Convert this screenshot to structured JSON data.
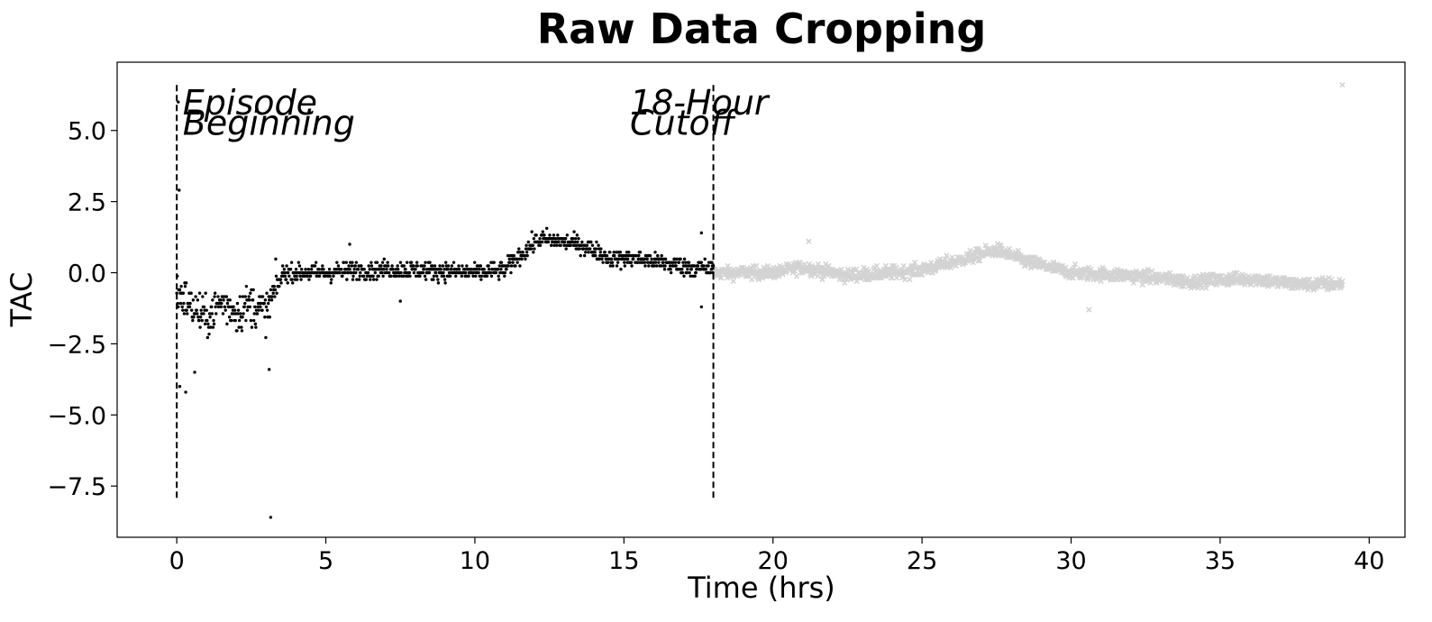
{
  "chart_data": {
    "type": "scatter",
    "title": "Raw Data Cropping",
    "xlabel": "Time (hrs)",
    "ylabel": "TAC",
    "xlim": [
      -2,
      41.2
    ],
    "ylim": [
      -9.3,
      7.4
    ],
    "xticks": [
      0,
      5,
      10,
      15,
      20,
      25,
      30,
      35,
      40
    ],
    "yticks": [
      5.0,
      2.5,
      0.0,
      -2.5,
      -5.0,
      -7.5
    ],
    "ytick_labels": [
      "5.0",
      "2.5",
      "0.0",
      "−2.5",
      "−5.0",
      "−7.5"
    ],
    "grid": false,
    "vlines": [
      {
        "x": 0,
        "ymin": -8.0,
        "ymax": 6.6,
        "style": "dashed",
        "label_lines": [
          "Episode",
          "Beginning"
        ],
        "label_x": 0.2
      },
      {
        "x": 18,
        "ymin": -8.0,
        "ymax": 6.6,
        "style": "dashed",
        "label_lines": [
          "18-Hour",
          "Cutoff"
        ],
        "label_x": 15.2
      }
    ],
    "label_y": [
      6.0,
      5.3
    ],
    "kept_color": "#000000",
    "cropped_color": "#d3d3d3",
    "kept_trend": [
      [
        0.0,
        -0.6
      ],
      [
        0.5,
        -1.2
      ],
      [
        1.0,
        -1.6
      ],
      [
        1.5,
        -1.0
      ],
      [
        2.0,
        -1.4
      ],
      [
        2.5,
        -1.1
      ],
      [
        3.0,
        -1.4
      ],
      [
        3.3,
        -0.6
      ],
      [
        3.6,
        0.0
      ],
      [
        5,
        0.0
      ],
      [
        6,
        0.1
      ],
      [
        8,
        0.1
      ],
      [
        10,
        0.0
      ],
      [
        11.0,
        0.1
      ],
      [
        11.6,
        0.7
      ],
      [
        12.2,
        1.2
      ],
      [
        13.0,
        1.1
      ],
      [
        13.8,
        0.9
      ],
      [
        14.5,
        0.5
      ],
      [
        15.5,
        0.5
      ],
      [
        16.5,
        0.3
      ],
      [
        18.0,
        0.1
      ]
    ],
    "cropped_trend": [
      [
        18.0,
        0.0
      ],
      [
        20,
        0.0
      ],
      [
        21,
        0.2
      ],
      [
        22.5,
        -0.1
      ],
      [
        24,
        0.0
      ],
      [
        25,
        0.1
      ],
      [
        26.5,
        0.5
      ],
      [
        27.5,
        0.8
      ],
      [
        28.5,
        0.4
      ],
      [
        30,
        0.0
      ],
      [
        32,
        -0.1
      ],
      [
        34,
        -0.3
      ],
      [
        36,
        -0.2
      ],
      [
        37.5,
        -0.4
      ],
      [
        39.1,
        -0.4
      ]
    ],
    "kept_outliers": [
      [
        0.05,
        6.0
      ],
      [
        0.08,
        2.9
      ],
      [
        0.1,
        -4.0
      ],
      [
        0.3,
        -4.2
      ],
      [
        0.6,
        -3.5
      ],
      [
        3.1,
        -3.4
      ],
      [
        3.15,
        -8.6
      ],
      [
        5.8,
        1.0
      ],
      [
        7.5,
        -1.0
      ],
      [
        17.6,
        -1.2
      ],
      [
        17.6,
        1.4
      ]
    ],
    "cropped_outliers": [
      [
        39.1,
        6.6
      ],
      [
        30.6,
        -1.3
      ],
      [
        21.2,
        1.1
      ]
    ],
    "n_points_kept": 1080,
    "n_points_cropped": 1260
  }
}
